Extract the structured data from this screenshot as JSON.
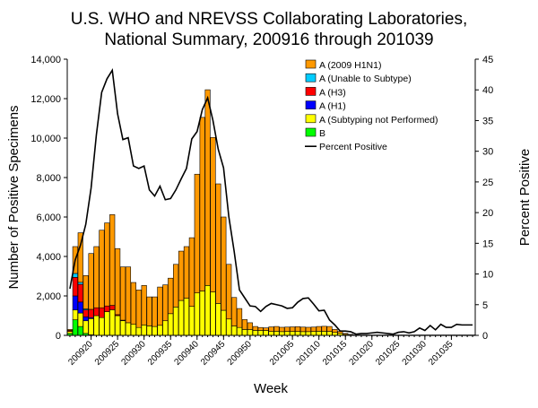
{
  "chart_data": {
    "type": "bar",
    "stacked": true,
    "title": [
      "U.S. WHO and NREVSS Collaborating Laboratories,",
      "National Summary, 200916 through 201039"
    ],
    "xlabel": "Week",
    "ylabel": "Number of Positive Specimens",
    "y2label": "Percent Positive",
    "ylim": [
      0,
      14000
    ],
    "y2lim": [
      0,
      45
    ],
    "yticks": [
      "0",
      "2,000",
      "4,000",
      "6,000",
      "8,000",
      "10,000",
      "12,000",
      "14,000"
    ],
    "y2ticks": [
      "0",
      "5",
      "10",
      "15",
      "20",
      "25",
      "30",
      "35",
      "40",
      "45"
    ],
    "xtick_labels": [
      "200920",
      "200925",
      "200930",
      "200935",
      "200940",
      "200945",
      "200950",
      "201005",
      "201010",
      "201015",
      "201020",
      "201025",
      "201030",
      "201035"
    ],
    "weeks": [
      "200916",
      "200917",
      "200918",
      "200919",
      "200920",
      "200921",
      "200922",
      "200923",
      "200924",
      "200925",
      "200926",
      "200927",
      "200928",
      "200929",
      "200930",
      "200931",
      "200932",
      "200933",
      "200934",
      "200935",
      "200936",
      "200937",
      "200938",
      "200939",
      "200940",
      "200941",
      "200942",
      "200943",
      "200944",
      "200945",
      "200946",
      "200947",
      "200948",
      "200949",
      "200950",
      "200951",
      "200952",
      "200953",
      "201001",
      "201002",
      "201003",
      "201004",
      "201005",
      "201006",
      "201007",
      "201008",
      "201009",
      "201010",
      "201011",
      "201012",
      "201013",
      "201014",
      "201015",
      "201016",
      "201017",
      "201018",
      "201019",
      "201020",
      "201021",
      "201022",
      "201023",
      "201024",
      "201025",
      "201026",
      "201027",
      "201028",
      "201029",
      "201030",
      "201031",
      "201032",
      "201033",
      "201034",
      "201035",
      "201036",
      "201037",
      "201038",
      "201039"
    ],
    "legend_position": "top-right",
    "series": [
      {
        "name": "B",
        "color": "#00FF00",
        "values": [
          100,
          790,
          450,
          100,
          30,
          0,
          0,
          0,
          0,
          0,
          0,
          0,
          0,
          0,
          0,
          0,
          0,
          0,
          0,
          0,
          0,
          0,
          0,
          0,
          0,
          0,
          0,
          0,
          0,
          0,
          0,
          0,
          0,
          0,
          0,
          0,
          0,
          0,
          0,
          0,
          0,
          0,
          0,
          0,
          0,
          0,
          0,
          0,
          0,
          0,
          0,
          0,
          0,
          0,
          0,
          0,
          0,
          0,
          0,
          0,
          0,
          0,
          0,
          0,
          0,
          0,
          0,
          0,
          0,
          0,
          0,
          0,
          0,
          0,
          0,
          0,
          0
        ]
      },
      {
        "name": "A (Subtyping not Performed)",
        "color": "#FFFF00",
        "values": [
          100,
          500,
          680,
          640,
          820,
          1000,
          900,
          1200,
          1300,
          1000,
          740,
          640,
          560,
          400,
          530,
          480,
          450,
          510,
          740,
          1100,
          1440,
          1770,
          1880,
          1470,
          2150,
          2250,
          2530,
          2200,
          1620,
          1270,
          830,
          480,
          400,
          300,
          300,
          250,
          250,
          250,
          200,
          210,
          190,
          200,
          200,
          200,
          190,
          190,
          200,
          210,
          210,
          200,
          150,
          100,
          50,
          20,
          10,
          10,
          10,
          10,
          10,
          10,
          10,
          10,
          10,
          10,
          10,
          10,
          10,
          10,
          10,
          10,
          10,
          10,
          10,
          10,
          10,
          10,
          10
        ]
      },
      {
        "name": "A (H1)",
        "color": "#0000FF",
        "values": [
          0,
          710,
          560,
          200,
          50,
          0,
          0,
          0,
          0,
          0,
          0,
          0,
          0,
          0,
          0,
          0,
          0,
          0,
          0,
          0,
          0,
          0,
          0,
          0,
          0,
          0,
          0,
          0,
          0,
          0,
          0,
          0,
          0,
          0,
          0,
          0,
          0,
          0,
          0,
          0,
          0,
          0,
          0,
          0,
          0,
          0,
          0,
          0,
          0,
          0,
          0,
          0,
          0,
          0,
          0,
          0,
          0,
          0,
          0,
          0,
          0,
          0,
          0,
          0,
          0,
          0,
          0,
          0,
          0,
          0,
          0,
          0,
          0,
          0,
          0,
          0,
          0
        ]
      },
      {
        "name": "A (H3)",
        "color": "#FF0000",
        "values": [
          50,
          940,
          900,
          350,
          420,
          400,
          500,
          290,
          220,
          50,
          30,
          0,
          0,
          0,
          0,
          0,
          0,
          0,
          0,
          0,
          0,
          0,
          0,
          0,
          0,
          0,
          0,
          0,
          0,
          0,
          0,
          0,
          0,
          0,
          0,
          0,
          0,
          0,
          0,
          0,
          0,
          0,
          0,
          0,
          0,
          0,
          0,
          0,
          0,
          0,
          0,
          0,
          0,
          0,
          0,
          0,
          0,
          0,
          0,
          0,
          0,
          0,
          0,
          0,
          0,
          0,
          0,
          0,
          0,
          0,
          0,
          0,
          0,
          0,
          0,
          0,
          0
        ]
      },
      {
        "name": "A (Unable to Subtype)",
        "color": "#00CCFF",
        "values": [
          0,
          200,
          100,
          50,
          0,
          0,
          0,
          0,
          0,
          0,
          0,
          0,
          0,
          0,
          0,
          0,
          0,
          0,
          0,
          0,
          0,
          0,
          0,
          0,
          0,
          0,
          0,
          0,
          0,
          0,
          0,
          0,
          0,
          0,
          0,
          0,
          0,
          0,
          0,
          0,
          0,
          0,
          0,
          0,
          0,
          0,
          0,
          0,
          0,
          0,
          0,
          0,
          0,
          0,
          0,
          0,
          0,
          0,
          0,
          0,
          0,
          0,
          0,
          0,
          0,
          0,
          0,
          0,
          0,
          0,
          0,
          0,
          0,
          0,
          0,
          0,
          0
        ]
      },
      {
        "name": "A (2009 H1N1)",
        "color": "#FF9900",
        "values": [
          50,
          1360,
          2510,
          1690,
          2830,
          3100,
          3930,
          4210,
          4600,
          3350,
          2700,
          2830,
          2120,
          1900,
          2000,
          1470,
          1500,
          1940,
          1820,
          1800,
          2160,
          2500,
          2620,
          3480,
          6020,
          8800,
          9920,
          7830,
          6060,
          4730,
          2770,
          1440,
          960,
          500,
          340,
          200,
          150,
          130,
          230,
          240,
          220,
          220,
          230,
          240,
          230,
          220,
          220,
          240,
          250,
          250,
          150,
          100,
          50,
          30,
          10,
          10,
          10,
          10,
          10,
          10,
          10,
          10,
          10,
          10,
          10,
          10,
          10,
          10,
          10,
          10,
          10,
          10,
          10,
          10,
          10,
          10,
          10
        ]
      }
    ],
    "line": {
      "name": "Percent Positive",
      "color": "#000000",
      "values": [
        7.6,
        12.3,
        14.7,
        18.1,
        24,
        32.7,
        39.6,
        41.8,
        43.2,
        36.1,
        31.9,
        32.2,
        27.6,
        27.2,
        27.6,
        23.7,
        22.7,
        24.3,
        22.1,
        22.3,
        23.7,
        25.5,
        27.2,
        32,
        33.2,
        36.8,
        38.7,
        35,
        30.3,
        27.3,
        19.3,
        13.7,
        7.4,
        6.1,
        4.8,
        4.7,
        3.9,
        4.7,
        5.2,
        5.0,
        4.8,
        4.4,
        4.5,
        5.4,
        6.0,
        6.1,
        5.1,
        4.0,
        4.1,
        2.5,
        1.7,
        0.7,
        0.7,
        0.6,
        0.2,
        0.3,
        0.3,
        0.4,
        0.5,
        0.4,
        0.3,
        0.2,
        0.5,
        0.6,
        0.4,
        0.6,
        1.2,
        0.8,
        1.6,
        0.9,
        1.8,
        1.3,
        1.3,
        1.8,
        1.7,
        1.7,
        1.7
      ]
    },
    "legend": [
      "A (2009 H1N1)",
      "A (Unable to Subtype)",
      "A (H3)",
      "A (H1)",
      "A (Subtyping not Performed)",
      "B",
      "Percent Positive"
    ]
  }
}
